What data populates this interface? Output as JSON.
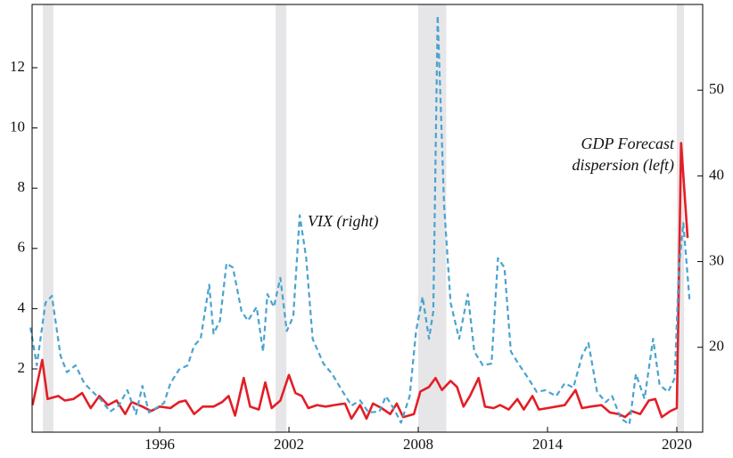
{
  "chart_data": {
    "type": "line",
    "xlim": [
      1990.08,
      2021.2
    ],
    "xticks": [
      1996,
      2002,
      2008,
      2014,
      2020
    ],
    "ylim": [
      -0.1,
      14.1
    ],
    "yticks": [
      2,
      4,
      6,
      8,
      10,
      12
    ],
    "y2lim": [
      10.1,
      60
    ],
    "y2ticks": [
      20,
      30,
      40,
      50
    ],
    "shading": [
      [
        1990.58,
        1991.07
      ],
      [
        2001.38,
        2001.88
      ],
      [
        2008.0,
        2009.3
      ],
      [
        2020.0,
        2020.33
      ]
    ],
    "shading_color": "#e6e6e8",
    "annotations": [
      "VIX (right)",
      "GDP Forecast",
      "dispersion (left)"
    ],
    "series": [
      {
        "color": "#e31e26",
        "dashed": false,
        "x": [
          1990.1,
          1990.55,
          1990.8,
          1991.3,
          1991.6,
          1992.0,
          1992.4,
          1992.8,
          1993.2,
          1993.6,
          1994.0,
          1994.4,
          1994.7,
          1995.2,
          1995.6,
          1996.0,
          1996.5,
          1996.9,
          1997.2,
          1997.6,
          1998.0,
          1998.5,
          1998.9,
          1999.2,
          1999.5,
          1999.9,
          2000.2,
          2000.6,
          2000.9,
          2001.2,
          2001.6,
          2002.0,
          2002.3,
          2002.6,
          2002.9,
          2003.3,
          2003.7,
          2004.1,
          2004.6,
          2004.9,
          2005.3,
          2005.6,
          2005.9,
          2006.3,
          2006.7,
          2007.0,
          2007.3,
          2007.8,
          2008.1,
          2008.5,
          2008.8,
          2009.1,
          2009.5,
          2009.8,
          2010.1,
          2010.4,
          2010.8,
          2011.1,
          2011.5,
          2011.8,
          2012.2,
          2012.6,
          2012.9,
          2013.3,
          2013.6,
          2014.0,
          2014.4,
          2014.8,
          2015.3,
          2015.6,
          2016.0,
          2016.5,
          2016.9,
          2017.3,
          2017.6,
          2017.9,
          2018.3,
          2018.7,
          2019.0,
          2019.3,
          2019.7,
          2020.0,
          2020.2,
          2020.5
        ],
        "values": [
          0.8,
          2.3,
          1.0,
          1.1,
          0.95,
          1.0,
          1.2,
          0.7,
          1.1,
          0.8,
          0.95,
          0.5,
          0.9,
          0.75,
          0.6,
          0.75,
          0.7,
          0.9,
          0.95,
          0.5,
          0.75,
          0.75,
          0.9,
          1.1,
          0.45,
          1.7,
          0.75,
          0.65,
          1.55,
          0.7,
          0.95,
          1.8,
          1.2,
          1.1,
          0.7,
          0.8,
          0.75,
          0.8,
          0.85,
          0.35,
          0.8,
          0.35,
          0.85,
          0.7,
          0.5,
          0.85,
          0.4,
          0.5,
          1.25,
          1.4,
          1.7,
          1.3,
          1.6,
          1.4,
          0.75,
          1.1,
          1.7,
          0.75,
          0.7,
          0.8,
          0.65,
          1.0,
          0.65,
          1.1,
          0.65,
          0.7,
          0.75,
          0.8,
          1.3,
          0.7,
          0.75,
          0.8,
          0.55,
          0.5,
          0.4,
          0.6,
          0.5,
          0.95,
          1.0,
          0.4,
          0.6,
          0.7,
          9.5,
          6.35
        ]
      },
      {
        "color": "#4aa3cf",
        "dashed": true,
        "axis": "y2",
        "x": [
          1990.0,
          1990.3,
          1990.7,
          1991.0,
          1991.4,
          1991.7,
          1992.1,
          1992.5,
          1992.9,
          1993.3,
          1993.7,
          1994.1,
          1994.5,
          1994.9,
          1995.2,
          1995.5,
          1995.9,
          1996.2,
          1996.5,
          1996.9,
          1997.3,
          1997.6,
          1997.9,
          1998.3,
          1998.5,
          1998.8,
          1999.1,
          1999.4,
          1999.8,
          2000.1,
          2000.5,
          2000.8,
          2001.0,
          2001.3,
          2001.6,
          2001.9,
          2002.2,
          2002.5,
          2002.8,
          2003.1,
          2003.6,
          2004.0,
          2004.5,
          2004.9,
          2005.3,
          2005.7,
          2006.2,
          2006.5,
          2006.9,
          2007.2,
          2007.6,
          2007.9,
          2008.2,
          2008.5,
          2008.7,
          2008.9,
          2009.2,
          2009.5,
          2009.9,
          2010.3,
          2010.6,
          2011.0,
          2011.4,
          2011.7,
          2012.0,
          2012.3,
          2012.7,
          2013.1,
          2013.5,
          2013.9,
          2014.4,
          2014.8,
          2015.2,
          2015.6,
          2015.9,
          2016.3,
          2016.7,
          2017.0,
          2017.4,
          2017.8,
          2018.1,
          2018.5,
          2018.9,
          2019.2,
          2019.6,
          2019.9,
          2020.1,
          2020.3,
          2020.6
        ],
        "values": [
          22.3,
          17.9,
          25.2,
          26.0,
          19.0,
          17.1,
          17.9,
          15.8,
          14.8,
          13.8,
          12.5,
          13.2,
          15.0,
          12.2,
          15.5,
          12.4,
          13.0,
          13.5,
          15.8,
          17.4,
          17.9,
          20.2,
          21.0,
          27.3,
          21.6,
          23.1,
          29.8,
          29.3,
          24.2,
          23.1,
          24.7,
          19.5,
          26.2,
          24.7,
          28.1,
          21.9,
          23.6,
          35.4,
          30.4,
          21.0,
          18.1,
          16.9,
          14.8,
          13.2,
          13.8,
          12.4,
          12.5,
          14.3,
          12.7,
          11.2,
          14.3,
          21.9,
          25.9,
          21.0,
          24.2,
          58.7,
          36.6,
          25.2,
          21.0,
          26.2,
          19.5,
          17.9,
          18.1,
          30.4,
          29.3,
          19.5,
          17.9,
          16.4,
          14.8,
          15.0,
          14.3,
          15.8,
          15.3,
          19.0,
          20.5,
          14.8,
          13.6,
          14.3,
          11.7,
          11.0,
          16.9,
          14.0,
          21.0,
          15.6,
          14.8,
          16.4,
          29.3,
          34.5,
          25.2
        ]
      }
    ]
  }
}
